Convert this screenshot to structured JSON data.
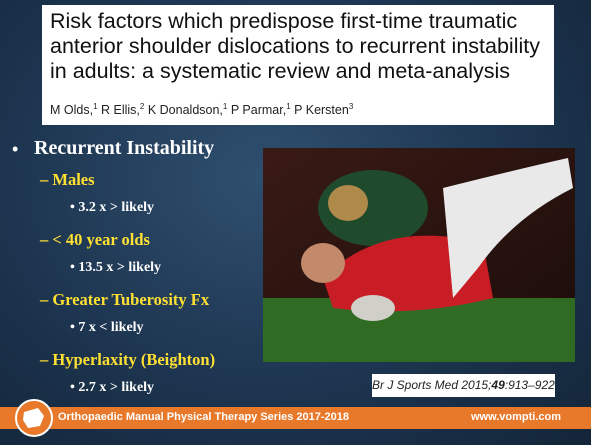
{
  "header": {
    "title": "Risk factors which predispose first-time traumatic anterior shoulder dislocations to recurrent instability in adults: a systematic review and meta-analysis",
    "authors": [
      {
        "name": "M Olds,",
        "affil": "1"
      },
      {
        "name": "R Ellis,",
        "affil": "2"
      },
      {
        "name": "K Donaldson,",
        "affil": "1"
      },
      {
        "name": "P Parmar,",
        "affil": "1"
      },
      {
        "name": "P Kersten",
        "affil": "3"
      }
    ]
  },
  "bullets": {
    "heading": "Recurrent Instability",
    "items": [
      {
        "label": "Males",
        "detail": "3.2 x > likely"
      },
      {
        "label": "< 40 year olds",
        "detail": "13.5 x > likely"
      },
      {
        "label": "Greater Tuberosity Fx",
        "detail": "7 x < likely"
      },
      {
        "label": "Hyperlaxity (Beighton)",
        "detail": "2.7 x > likely"
      }
    ]
  },
  "citation": {
    "journal": "Br J Sports Med 2015;",
    "volume": "49",
    "pages": ":913–922."
  },
  "footer": {
    "left": "Orthopaedic Manual Physical Therapy Series 2017-2018",
    "right": "www.vompti.com"
  }
}
